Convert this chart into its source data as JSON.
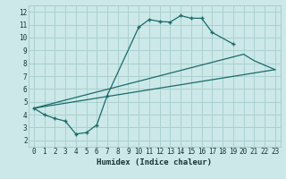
{
  "xlabel": "Humidex (Indice chaleur)",
  "background_color": "#cce8e8",
  "grid_color": "#aad0d0",
  "line_color": "#1a6b6b",
  "xlim": [
    -0.5,
    23.5
  ],
  "ylim": [
    1.5,
    12.5
  ],
  "xticks": [
    0,
    1,
    2,
    3,
    4,
    5,
    6,
    7,
    8,
    9,
    10,
    11,
    12,
    13,
    14,
    15,
    16,
    17,
    18,
    19,
    20,
    21,
    22,
    23
  ],
  "yticks": [
    2,
    3,
    4,
    5,
    6,
    7,
    8,
    9,
    10,
    11,
    12
  ],
  "line1_x": [
    0,
    1,
    2,
    3,
    4,
    5,
    6,
    7,
    10,
    11,
    12,
    13,
    14,
    15,
    16,
    17,
    19
  ],
  "line1_y": [
    4.5,
    4.0,
    3.7,
    3.5,
    2.5,
    2.6,
    3.2,
    5.5,
    10.8,
    11.4,
    11.25,
    11.2,
    11.7,
    11.5,
    11.5,
    10.4,
    9.5
  ],
  "line2_x": [
    0,
    23
  ],
  "line2_y": [
    4.5,
    7.5
  ],
  "line3_x": [
    0,
    20,
    21,
    23
  ],
  "line3_y": [
    4.5,
    8.7,
    8.2,
    7.5
  ]
}
